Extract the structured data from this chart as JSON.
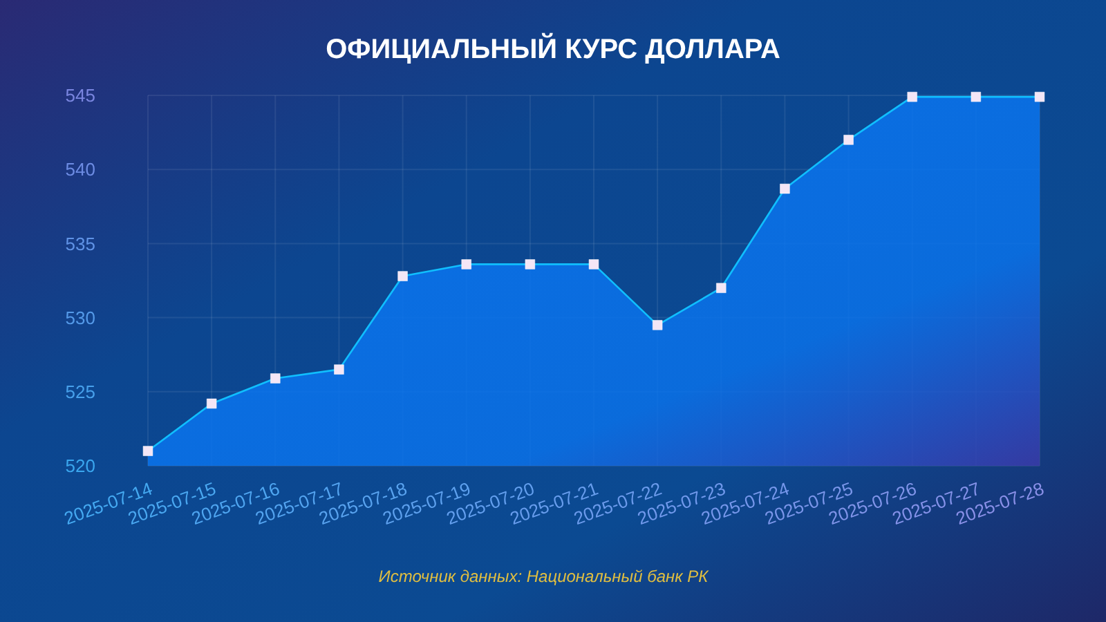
{
  "chart_data": {
    "type": "area",
    "title": "ОФИЦИАЛЬНЫЙ КУРС ДОЛЛАРА",
    "categories": [
      "2025-07-14",
      "2025-07-15",
      "2025-07-16",
      "2025-07-17",
      "2025-07-18",
      "2025-07-19",
      "2025-07-20",
      "2025-07-21",
      "2025-07-22",
      "2025-07-23",
      "2025-07-24",
      "2025-07-25",
      "2025-07-26",
      "2025-07-27",
      "2025-07-28"
    ],
    "values": [
      521.0,
      524.2,
      525.9,
      526.5,
      532.8,
      533.6,
      533.6,
      533.6,
      529.5,
      532.0,
      538.7,
      542.0,
      544.9,
      544.9,
      544.9
    ],
    "color": "#0a74ee",
    "ylim": [
      520,
      545
    ],
    "yticks": [
      520,
      525,
      530,
      535,
      540,
      545
    ],
    "grid": true,
    "marker": "square",
    "line_style": "solid",
    "annotations": [
      "Источник данных: Национальный банк РК"
    ]
  }
}
